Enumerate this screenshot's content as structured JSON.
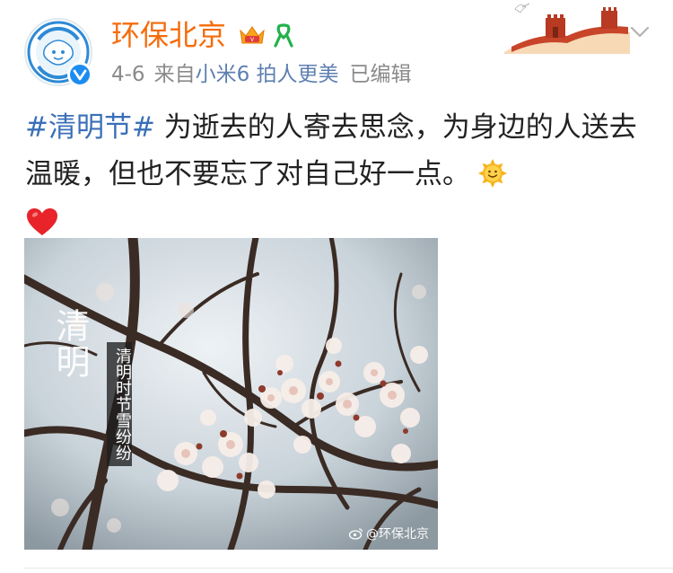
{
  "post": {
    "author": {
      "name": "环保北京",
      "avatar_icon": "hbbj-mascot-avatar",
      "verified_icon": "verified-v-icon"
    },
    "badges": [
      "vip-crown-icon",
      "ribbon-icon"
    ],
    "decoration": "great-wall-icon",
    "meta": {
      "date": "4-6",
      "source_prefix": "来自",
      "device": "小米6 拍人更美",
      "edited": "已编辑"
    },
    "text": {
      "topic": "#清明节#",
      "body": " 为逝去的人寄去思念，为身边的人送去温暖，但也不要忘了对自己好一点。"
    },
    "emojis": [
      "sun-smile-icon",
      "red-heart-icon"
    ],
    "image": {
      "title": "清明",
      "caption": "清明时节雪纷纷",
      "watermark": "@环保北京"
    }
  },
  "colors": {
    "username": "#f56c0b",
    "meta": "#8a8a8a",
    "topic": "#3a6fb8",
    "verified": "#1c8cf1"
  }
}
